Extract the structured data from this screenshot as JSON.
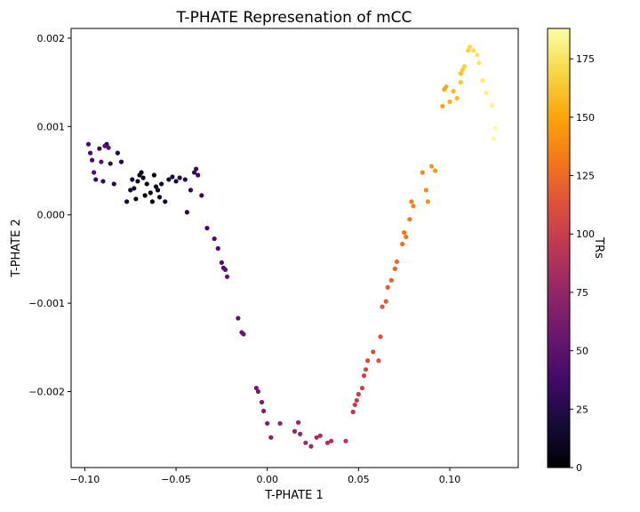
{
  "chart_data": {
    "type": "scatter",
    "title": "T-PHATE Represenation of mCC",
    "xlabel": "T-PHATE 1",
    "ylabel": "T-PHATE 2",
    "xlim": [
      -0.1075,
      0.1375
    ],
    "ylim": [
      -0.00286,
      0.00211
    ],
    "x_ticks": [
      -0.1,
      -0.05,
      0.0,
      0.05,
      0.1
    ],
    "x_tick_labels": [
      "−0.10",
      "−0.05",
      "0.00",
      "0.05",
      "0.10"
    ],
    "y_ticks": [
      -0.002,
      -0.001,
      0.0,
      0.001,
      0.002
    ],
    "y_tick_labels": [
      "−0.002",
      "−0.001",
      "0.000",
      "0.001",
      "0.002"
    ],
    "colorbar": {
      "label": "TRs",
      "range": [
        0,
        188
      ],
      "ticks": [
        0,
        25,
        50,
        75,
        100,
        125,
        150,
        175
      ],
      "tick_labels": [
        "0",
        "25",
        "50",
        "75",
        "100",
        "125",
        "150",
        "175"
      ],
      "colormap": "inferno",
      "position": "right"
    },
    "grid": false,
    "x": [
      0.125,
      0.124,
      0.123,
      0.12,
      0.118,
      0.116,
      0.115,
      0.113,
      0.111,
      0.11,
      0.108,
      0.107,
      0.106,
      0.106,
      0.104,
      0.102,
      0.1,
      0.098,
      0.097,
      0.096,
      0.092,
      0.09,
      0.088,
      0.087,
      0.085,
      0.08,
      0.079,
      0.078,
      0.076,
      0.075,
      0.074,
      0.071,
      0.07,
      0.068,
      0.066,
      0.065,
      0.063,
      0.062,
      0.061,
      0.058,
      0.055,
      0.054,
      0.053,
      0.052,
      0.05,
      0.049,
      0.048,
      0.047,
      0.043,
      0.035,
      0.033,
      0.029,
      0.027,
      0.024,
      0.021,
      0.018,
      0.017,
      0.015,
      0.007,
      0.002,
      0.0,
      -0.002,
      -0.003,
      -0.005,
      -0.006,
      -0.013,
      -0.014,
      -0.016,
      -0.022,
      -0.023,
      -0.024,
      -0.025,
      -0.027,
      -0.029,
      -0.033,
      -0.036,
      -0.038,
      -0.039,
      -0.04,
      -0.042,
      -0.044,
      -0.045,
      -0.048,
      -0.05,
      -0.052,
      -0.054,
      -0.056,
      -0.058,
      -0.059,
      -0.06,
      -0.061,
      -0.062,
      -0.063,
      -0.064,
      -0.066,
      -0.067,
      -0.068,
      -0.069,
      -0.07,
      -0.071,
      -0.072,
      -0.073,
      -0.074,
      -0.075,
      -0.077,
      -0.08,
      -0.082,
      -0.084,
      -0.086,
      -0.088,
      -0.09,
      -0.092,
      -0.094,
      -0.096,
      -0.098,
      -0.097,
      -0.095,
      -0.091,
      -0.089,
      -0.087
    ],
    "y": [
      0.00098,
      0.00086,
      0.00124,
      0.00138,
      0.00152,
      0.00172,
      0.00181,
      0.00186,
      0.0019,
      0.00186,
      0.00168,
      0.00164,
      0.0015,
      0.0016,
      0.00132,
      0.0014,
      0.00128,
      0.00145,
      0.00142,
      0.00123,
      0.0005,
      0.00055,
      0.00015,
      0.00028,
      0.00048,
      0.0001,
      0.00015,
      -5e-05,
      -0.00025,
      -0.0002,
      -0.00033,
      -0.00053,
      -0.00061,
      -0.00074,
      -0.00082,
      -0.00098,
      -0.00104,
      -0.00138,
      -0.00165,
      -0.00155,
      -0.00165,
      -0.00175,
      -0.00182,
      -0.00196,
      -0.00203,
      -0.0021,
      -0.00215,
      -0.00223,
      -0.00256,
      -0.00256,
      -0.00258,
      -0.0025,
      -0.00252,
      -0.00262,
      -0.00258,
      -0.00248,
      -0.00235,
      -0.00245,
      -0.00236,
      -0.00252,
      -0.00236,
      -0.00222,
      -0.00212,
      -0.002,
      -0.00196,
      -0.00135,
      -0.00133,
      -0.00117,
      -0.0007,
      -0.00062,
      -0.0006,
      -0.00054,
      -0.00038,
      -0.00027,
      -0.00015,
      0.00022,
      0.00045,
      0.00052,
      0.00048,
      0.00028,
      3e-05,
      0.0004,
      0.00042,
      0.00038,
      0.00043,
      0.0004,
      0.00015,
      0.00035,
      0.0002,
      0.00028,
      0.00032,
      0.00045,
      0.00015,
      0.00025,
      0.00035,
      0.00022,
      0.00042,
      0.00048,
      0.00045,
      0.00038,
      0.00018,
      0.0003,
      0.0004,
      0.00028,
      0.00015,
      0.0006,
      0.0007,
      0.00035,
      0.00058,
      0.0008,
      0.00038,
      0.00075,
      0.0004,
      0.00062,
      0.0008,
      0.0007,
      0.00048,
      0.0006,
      0.00078,
      0.00076
    ],
    "c": [
      187,
      185,
      183,
      181,
      179,
      177,
      175,
      173,
      171,
      169,
      167,
      165,
      163,
      161,
      159,
      157,
      155,
      153,
      151,
      149,
      147,
      145,
      143,
      141,
      139,
      137,
      135,
      133,
      131,
      129,
      127,
      125,
      123,
      121,
      119,
      117,
      115,
      113,
      111,
      109,
      107,
      105,
      103,
      101,
      99,
      97,
      95,
      93,
      91,
      89,
      87,
      85,
      83,
      81,
      79,
      77,
      75,
      73,
      71,
      69,
      67,
      65,
      63,
      61,
      59,
      57,
      55,
      53,
      51,
      49,
      47,
      45,
      43,
      41,
      39,
      37,
      35,
      33,
      31,
      29,
      27,
      25,
      23,
      21,
      19,
      17,
      15,
      13,
      11,
      9,
      7,
      5,
      3,
      1,
      0,
      2,
      4,
      6,
      8,
      10,
      12,
      14,
      16,
      18,
      20,
      22,
      24,
      26,
      28,
      30,
      32,
      34,
      36,
      38,
      40,
      42,
      44,
      46,
      48,
      50
    ]
  }
}
